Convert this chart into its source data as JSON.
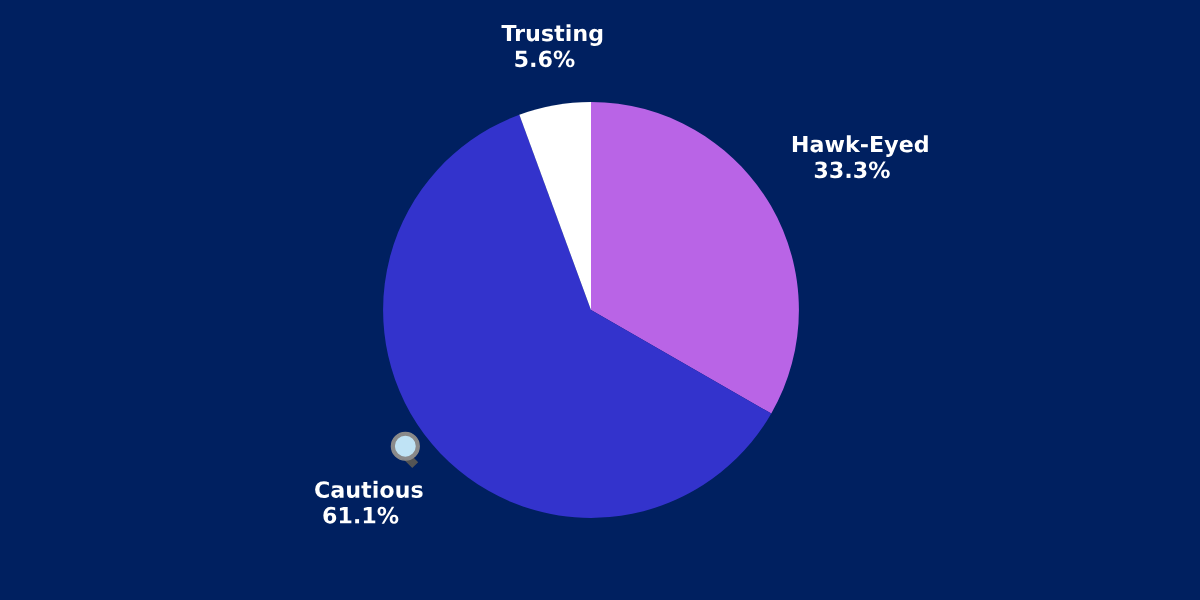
{
  "chart_data": {
    "type": "pie",
    "categories": [
      "Hawk-Eyed",
      "Cautious",
      "Trusting"
    ],
    "values": [
      33.3,
      61.1,
      5.6
    ],
    "value_labels": [
      "33.3%",
      "61.1%",
      "5.6%"
    ],
    "colors": [
      "#b964e6",
      "#3333cc",
      "#ffffff"
    ]
  }
}
